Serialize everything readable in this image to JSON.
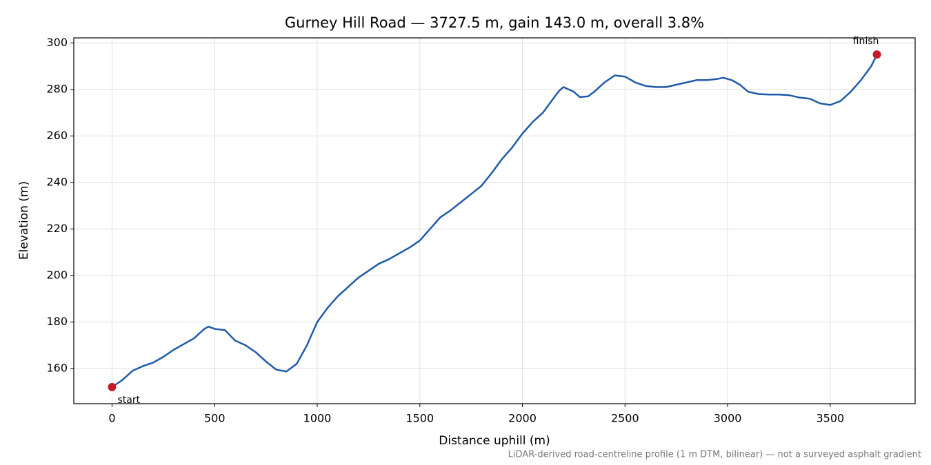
{
  "chart_data": {
    "type": "line",
    "title": "Gurney Hill Road — 3727.5 m, gain 143.0 m, overall 3.8%",
    "x_label": "Distance uphill (m)",
    "y_label": "Elevation (m)",
    "footnote": "LiDAR-derived road-centreline profile (1 m DTM, bilinear) — not a surveyed asphalt gradient",
    "annotations": [
      "start",
      "finish"
    ],
    "marker_color": "#c51b29",
    "grid": true,
    "xlim": [
      -186.4,
      3913.9
    ],
    "ylim": [
      144.85,
      302.15
    ],
    "xticks": [
      0,
      500,
      1000,
      1500,
      2000,
      2500,
      3000,
      3500
    ],
    "yticks": [
      160,
      180,
      200,
      220,
      240,
      260,
      280,
      300
    ],
    "x": [
      0,
      50,
      100,
      150,
      200,
      250,
      300,
      350,
      400,
      450,
      470,
      500,
      550,
      600,
      650,
      700,
      750,
      800,
      850,
      900,
      950,
      1000,
      1050,
      1100,
      1150,
      1200,
      1250,
      1300,
      1350,
      1400,
      1450,
      1500,
      1550,
      1600,
      1650,
      1700,
      1750,
      1800,
      1850,
      1900,
      1950,
      2000,
      2050,
      2100,
      2150,
      2180,
      2200,
      2250,
      2280,
      2320,
      2350,
      2400,
      2450,
      2500,
      2550,
      2600,
      2650,
      2700,
      2750,
      2800,
      2850,
      2900,
      2950,
      2980,
      3020,
      3060,
      3100,
      3150,
      3200,
      3250,
      3300,
      3350,
      3400,
      3450,
      3500,
      3550,
      3600,
      3650,
      3700,
      3727.5
    ],
    "series": [
      {
        "name": "Elevation",
        "color": "#1f5aa8",
        "values": [
          152,
          155,
          159,
          161,
          162.5,
          165,
          168,
          170.5,
          173,
          177,
          178,
          177,
          176.5,
          172,
          170,
          167,
          163,
          159.5,
          158.7,
          162,
          170,
          180,
          186,
          191,
          195,
          199,
          202,
          205,
          207,
          209.5,
          212,
          215,
          220,
          225,
          228,
          231.5,
          235,
          238.5,
          244,
          250,
          255,
          261,
          266,
          270,
          276,
          279.5,
          281,
          279,
          276.7,
          277,
          279,
          283,
          286,
          285.5,
          283,
          281.5,
          281,
          281,
          282,
          283,
          284,
          284,
          284.5,
          285,
          284,
          282,
          279,
          278,
          277.8,
          277.8,
          277.5,
          276.5,
          276,
          274,
          273.3,
          275,
          279,
          284,
          290,
          295
        ]
      }
    ]
  }
}
